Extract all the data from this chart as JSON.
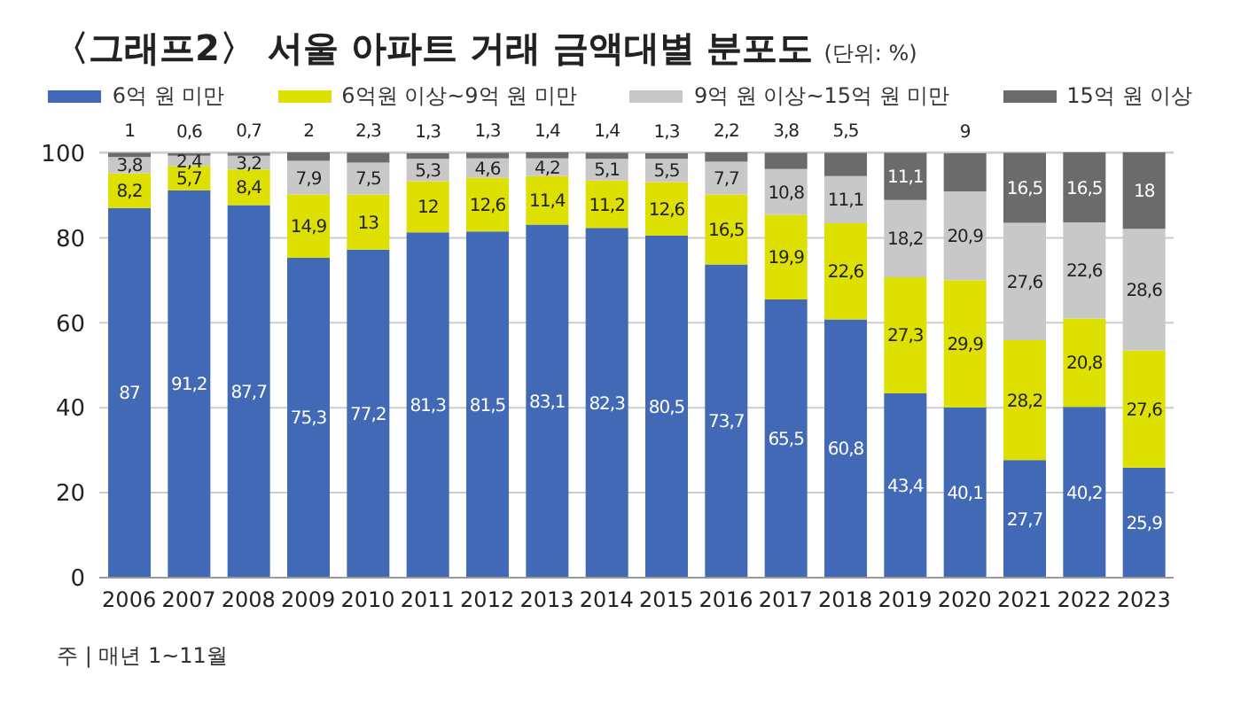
{
  "chart_data": {
    "type": "bar",
    "title": "〈그래프2〉 서울 아파트 거래 금액대별 분포도",
    "subtitle": "(단위: %)",
    "categories": [
      "2006",
      "2007",
      "2008",
      "2009",
      "2010",
      "2011",
      "2012",
      "2013",
      "2014",
      "2015",
      "2016",
      "2017",
      "2018",
      "2019",
      "2020",
      "2021",
      "2022",
      "2023"
    ],
    "series": [
      {
        "name": "6억 원 미만",
        "color": "#4169b5",
        "values": [
          87,
          91.2,
          87.7,
          75.3,
          77.2,
          81.3,
          81.5,
          83.1,
          82.3,
          80.5,
          73.7,
          65.5,
          60.8,
          43.4,
          40.1,
          27.7,
          40.2,
          25.9
        ],
        "value_labels": [
          "87",
          "91,2",
          "87,7",
          "75,3",
          "77,2",
          "81,3",
          "81,5",
          "83,1",
          "82,3",
          "80,5",
          "73,7",
          "65,5",
          "60,8",
          "43,4",
          "40,1",
          "27,7",
          "40,2",
          "25,9"
        ]
      },
      {
        "name": "6억원 이상~9억 원 미만",
        "color": "#dde000",
        "values": [
          8.2,
          5.7,
          8.4,
          14.9,
          13,
          12,
          12.6,
          11.4,
          11.2,
          12.6,
          16.5,
          19.9,
          22.6,
          27.3,
          29.9,
          28.2,
          20.8,
          27.6
        ],
        "value_labels": [
          "8,2",
          "5,7",
          "8,4",
          "14,9",
          "13",
          "12",
          "12,6",
          "11,4",
          "11,2",
          "12,6",
          "16,5",
          "19,9",
          "22,6",
          "27,3",
          "29,9",
          "28,2",
          "20,8",
          "27,6"
        ]
      },
      {
        "name": "9억 원 이상~15억 원 미만",
        "color": "#c8c8c8",
        "values": [
          3.8,
          2.4,
          3.2,
          7.9,
          7.5,
          5.3,
          4.6,
          4.2,
          5.1,
          5.5,
          7.7,
          10.8,
          11.1,
          18.2,
          20.9,
          27.6,
          22.6,
          28.6
        ],
        "value_labels": [
          "3,8",
          "2,4",
          "3,2",
          "7,9",
          "7,5",
          "5,3",
          "4,6",
          "4,2",
          "5,1",
          "5,5",
          "7,7",
          "10,8",
          "11,1",
          "18,2",
          "20,9",
          "27,6",
          "22,6",
          "28,6"
        ]
      },
      {
        "name": "15억 원 이상",
        "color": "#6b6b6b",
        "values": [
          1,
          0.6,
          0.7,
          2,
          2.3,
          1.3,
          1.3,
          1.4,
          1.4,
          1.3,
          2.2,
          3.8,
          5.5,
          11.1,
          9,
          16.5,
          16.5,
          18
        ],
        "value_labels": [
          "1",
          "0,6",
          "0,7",
          "2",
          "2,3",
          "1,3",
          "1,3",
          "1,4",
          "1,4",
          "1,3",
          "2,2",
          "3,8",
          "5,5",
          "11,1",
          "9",
          "16,5",
          "16,5",
          "18"
        ]
      }
    ],
    "stacked": true,
    "ylim": [
      0,
      100.1
    ],
    "yticks": [
      0,
      20,
      40,
      60,
      80,
      100
    ],
    "grid": "y",
    "legend": "top",
    "annotations": [
      "주 | 매년 1~11월"
    ]
  }
}
